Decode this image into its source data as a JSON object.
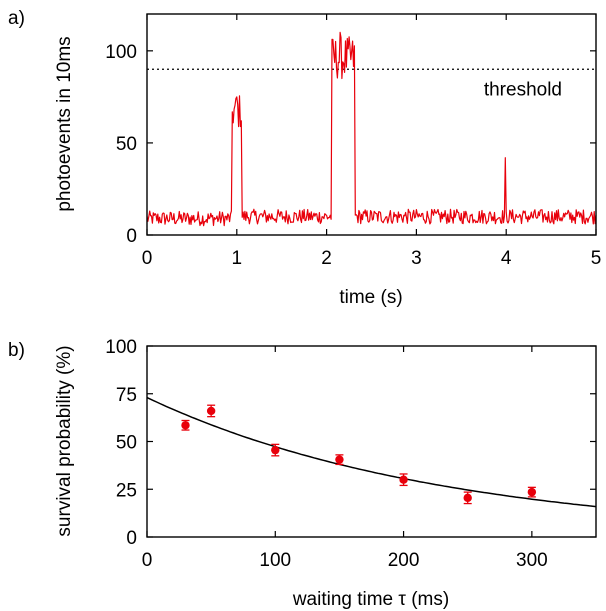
{
  "chart_data": [
    {
      "panel_label": "a)",
      "type": "line",
      "xlabel": "time (s)",
      "ylabel": "photoevents in 10ms",
      "xlim": [
        0,
        5
      ],
      "ylim": [
        0,
        120
      ],
      "xticks": [
        0,
        1,
        2,
        3,
        4,
        5
      ],
      "yticks": [
        0,
        50,
        100
      ],
      "grid": false,
      "series_color": "#e8000b",
      "threshold": {
        "value": 90,
        "label": "threshold",
        "style": "dotted"
      },
      "segments": [
        {
          "x_start": 0.0,
          "x_end": 0.95,
          "level": 9
        },
        {
          "x_start": 0.95,
          "x_end": 1.06,
          "level": 67
        },
        {
          "x_start": 1.06,
          "x_end": 2.06,
          "level": 10
        },
        {
          "x_start": 2.06,
          "x_end": 2.32,
          "level": 96
        },
        {
          "x_start": 2.32,
          "x_end": 5.0,
          "level": 10
        }
      ],
      "peaks": [
        {
          "x": 1.0,
          "y": 75
        },
        {
          "x": 2.15,
          "y": 110
        },
        {
          "x": 3.99,
          "y": 42
        }
      ]
    },
    {
      "panel_label": "b)",
      "type": "scatter",
      "xlabel": "waiting time τ (ms)",
      "ylabel": "survival probability (%)",
      "xlim": [
        0,
        350
      ],
      "ylim": [
        0,
        100
      ],
      "xticks": [
        0,
        100,
        200,
        300
      ],
      "yticks": [
        0,
        25,
        50,
        75,
        100
      ],
      "grid": false,
      "series_color": "#e8000b",
      "points": [
        {
          "x": 30,
          "y": 58.5,
          "err": 2.5
        },
        {
          "x": 50,
          "y": 66,
          "err": 3.0
        },
        {
          "x": 100,
          "y": 45.5,
          "err": 3.0
        },
        {
          "x": 150,
          "y": 40.5,
          "err": 2.5
        },
        {
          "x": 200,
          "y": 30,
          "err": 3.0
        },
        {
          "x": 250,
          "y": 20.5,
          "err": 3.0
        },
        {
          "x": 300,
          "y": 23.5,
          "err": 2.5
        }
      ],
      "fit": {
        "model": "exponential",
        "amplitude": 73,
        "decay_ms": 230,
        "color": "#000000"
      }
    }
  ]
}
